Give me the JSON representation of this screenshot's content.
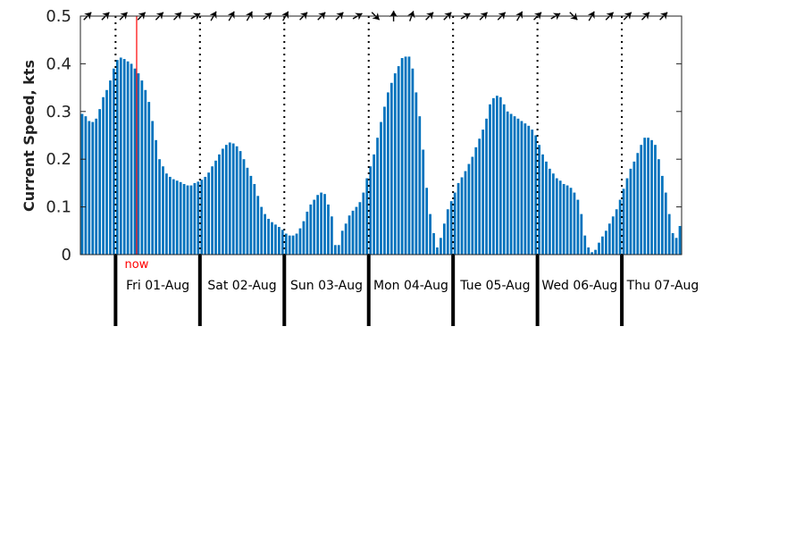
{
  "chart_data": {
    "type": "bar",
    "ylabel": "Current Speed, kts",
    "ylim": [
      0,
      0.5
    ],
    "yticks": [
      "0",
      "0.1",
      "0.2",
      "0.3",
      "0.4",
      "0.5"
    ],
    "ytick_values": [
      0,
      0.1,
      0.2,
      0.3,
      0.4,
      0.5
    ],
    "time_start": "2025-07-31 14:00",
    "interval_hours": 1,
    "values": [
      0.295,
      0.29,
      0.28,
      0.278,
      0.285,
      0.305,
      0.33,
      0.345,
      0.365,
      0.39,
      0.408,
      0.413,
      0.41,
      0.405,
      0.4,
      0.39,
      0.38,
      0.365,
      0.345,
      0.32,
      0.28,
      0.24,
      0.2,
      0.185,
      0.17,
      0.163,
      0.158,
      0.155,
      0.152,
      0.148,
      0.145,
      0.145,
      0.15,
      0.153,
      0.157,
      0.163,
      0.172,
      0.185,
      0.197,
      0.21,
      0.222,
      0.23,
      0.235,
      0.233,
      0.227,
      0.217,
      0.2,
      0.182,
      0.165,
      0.148,
      0.123,
      0.1,
      0.085,
      0.075,
      0.068,
      0.063,
      0.058,
      0.052,
      0.044,
      0.04,
      0.04,
      0.044,
      0.055,
      0.07,
      0.09,
      0.105,
      0.115,
      0.125,
      0.13,
      0.127,
      0.105,
      0.08,
      0.02,
      0.02,
      0.05,
      0.065,
      0.082,
      0.092,
      0.1,
      0.11,
      0.13,
      0.16,
      0.185,
      0.21,
      0.245,
      0.278,
      0.31,
      0.34,
      0.36,
      0.38,
      0.395,
      0.412,
      0.415,
      0.415,
      0.39,
      0.34,
      0.29,
      0.22,
      0.14,
      0.085,
      0.045,
      0.015,
      0.035,
      0.065,
      0.095,
      0.112,
      0.13,
      0.15,
      0.162,
      0.175,
      0.19,
      0.205,
      0.225,
      0.243,
      0.262,
      0.285,
      0.315,
      0.328,
      0.333,
      0.33,
      0.315,
      0.3,
      0.295,
      0.29,
      0.285,
      0.28,
      0.275,
      0.27,
      0.262,
      0.25,
      0.23,
      0.21,
      0.195,
      0.18,
      0.17,
      0.16,
      0.155,
      0.148,
      0.145,
      0.14,
      0.13,
      0.115,
      0.085,
      0.04,
      0.015,
      0.005,
      0.01,
      0.025,
      0.038,
      0.05,
      0.065,
      0.08,
      0.095,
      0.115,
      0.138,
      0.16,
      0.18,
      0.195,
      0.213,
      0.23,
      0.245,
      0.245,
      0.24,
      0.23,
      0.2,
      0.165,
      0.13,
      0.085,
      0.045,
      0.035,
      0.06
    ],
    "day_labels": [
      "Fri 01-Aug",
      "Sat 02-Aug",
      "Sun 03-Aug",
      "Mon 04-Aug",
      "Tue 05-Aug",
      "Wed 06-Aug",
      "Thu 07-Aug"
    ],
    "now_label": "now",
    "now_time": "2025-08-01 06:00",
    "direction_arrows_deg": [
      315,
      315,
      315,
      315,
      315,
      315,
      330,
      300,
      300,
      300,
      320,
      300,
      315,
      315,
      315,
      330,
      45,
      270,
      290,
      315,
      315,
      330,
      315,
      315,
      300,
      315,
      330,
      45,
      300,
      315,
      315,
      315,
      315
    ],
    "colors": {
      "bars": "#0072bd",
      "now_line": "#ff0000",
      "arrows": "#000000",
      "day_lines": "#000000",
      "axis": "#222222"
    },
    "grid": false
  }
}
